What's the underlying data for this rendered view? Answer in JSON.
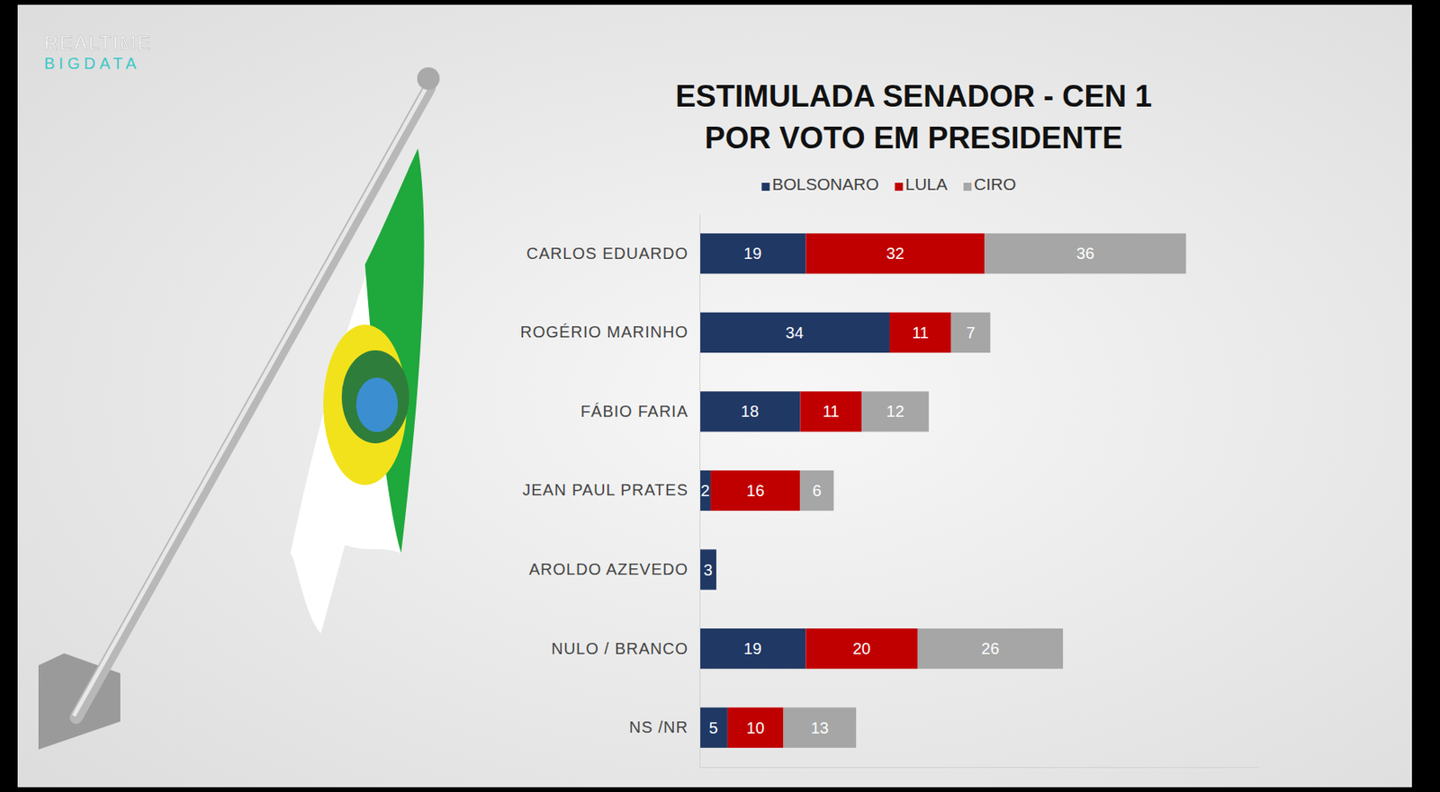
{
  "chart_data": {
    "type": "bar",
    "orientation": "horizontal",
    "stacked": true,
    "data_labels": true,
    "tick_labels": "y",
    "legend": "top",
    "title": "ESTIMULADA SENADOR - CEN 1",
    "subtitle": "POR VOTO EM PRESIDENTE",
    "annotations": [
      "REALTIME",
      "BIGDATA"
    ],
    "categories": [
      "CARLOS EDUARDO",
      "ROGÉRIO MARINHO",
      "FÁBIO FARIA",
      "JEAN PAUL PRATES",
      "AROLDO AZEVEDO",
      "NULO / BRANCO",
      "NS /NR"
    ],
    "series": [
      {
        "name": "BOLSONARO",
        "color": "#203864",
        "values": [
          19,
          34,
          18,
          2,
          3,
          19,
          5
        ]
      },
      {
        "name": "LULA",
        "color": "#c00000",
        "values": [
          32,
          11,
          11,
          16,
          0,
          20,
          10
        ]
      },
      {
        "name": "CIRO",
        "color": "#a6a6a6",
        "values": [
          36,
          7,
          12,
          6,
          0,
          26,
          13
        ]
      }
    ],
    "xlim": [
      0,
      100
    ]
  }
}
